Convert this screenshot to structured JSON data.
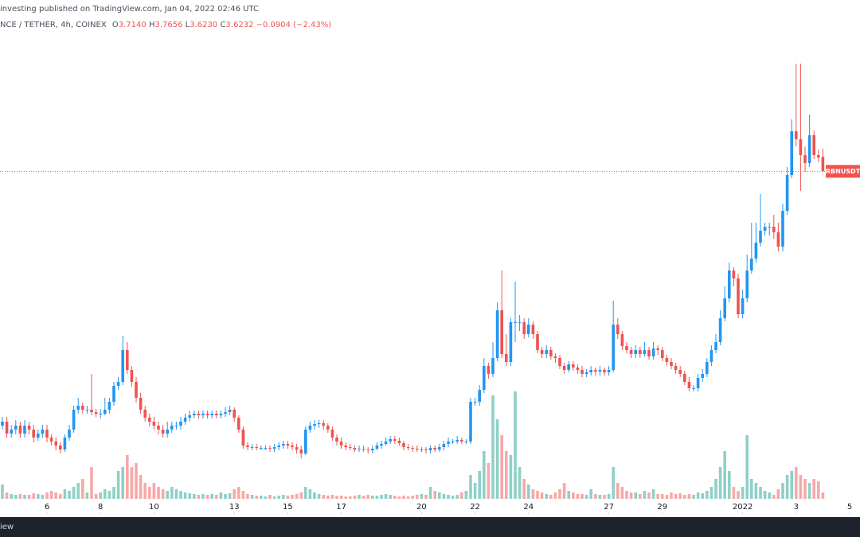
{
  "header": {
    "published": "investing published on TradingView.com, Jan 04, 2022 02:46 UTC",
    "symbol": "NCE / TETHER, 4h, COINEX",
    "open_label": "O",
    "open": "3.7140",
    "high_label": "H",
    "high": "3.7656",
    "low_label": "L",
    "low": "3.6230",
    "close_label": "C",
    "close": "3.6232",
    "change": "−0.0904 (−2.43%)"
  },
  "footer": {
    "brand": "iew"
  },
  "chart_data": {
    "type": "candlestick",
    "open": [
      2.025,
      2.05,
      1.975,
      2.0,
      2.025,
      1.975,
      2.025,
      2.0,
      1.95,
      1.975,
      2.0,
      1.95,
      1.925,
      1.9,
      1.875,
      1.95,
      2.0,
      2.125,
      2.15,
      2.125,
      2.125,
      2.11,
      2.1,
      2.1,
      2.125,
      2.175,
      2.275,
      2.3,
      2.5,
      2.375,
      2.3,
      2.2,
      2.125,
      2.075,
      2.05,
      2.025,
      2.0,
      1.975,
      2.0,
      2.025,
      2.025,
      2.05,
      2.075,
      2.09,
      2.1,
      2.09,
      2.1,
      2.09,
      2.1,
      2.09,
      2.1,
      2.11,
      2.125,
      2.075,
      2.0,
      1.9,
      1.89,
      1.89,
      1.885,
      1.885,
      1.885,
      1.88,
      1.89,
      1.9,
      1.91,
      1.9,
      1.89,
      1.875,
      1.85,
      2.0,
      2.025,
      2.035,
      2.04,
      2.025,
      2.0,
      1.95,
      1.925,
      1.9,
      1.89,
      1.885,
      1.875,
      1.88,
      1.875,
      1.87,
      1.88,
      1.9,
      1.91,
      1.925,
      1.94,
      1.93,
      1.915,
      1.89,
      1.885,
      1.88,
      1.875,
      1.875,
      1.87,
      1.885,
      1.875,
      1.89,
      1.91,
      1.925,
      1.925,
      1.935,
      1.925,
      1.925,
      2.175,
      2.175,
      2.25,
      2.4,
      2.35,
      2.45,
      2.75,
      2.475,
      2.425,
      2.675,
      2.675,
      2.675,
      2.6,
      2.66,
      2.6,
      2.5,
      2.475,
      2.5,
      2.46,
      2.45,
      2.4,
      2.375,
      2.41,
      2.39,
      2.375,
      2.35,
      2.36,
      2.375,
      2.365,
      2.375,
      2.36,
      2.375,
      2.66,
      2.6,
      2.525,
      2.5,
      2.475,
      2.5,
      2.475,
      2.5,
      2.46,
      2.51,
      2.5,
      2.45,
      2.425,
      2.4,
      2.375,
      2.35,
      2.3,
      2.26,
      2.26,
      2.325,
      2.35,
      2.425,
      2.5,
      2.55,
      2.7,
      2.825,
      3.0,
      2.95,
      2.725,
      2.825,
      3.0,
      3.075,
      3.175,
      3.25,
      3.275,
      3.275,
      3.24,
      3.15,
      3.375,
      3.6,
      3.875,
      3.825,
      3.725,
      3.675,
      3.85,
      3.725,
      3.714
    ],
    "high": [
      2.08,
      2.08,
      2.03,
      2.06,
      2.05,
      2.06,
      2.05,
      2.03,
      2.0,
      2.03,
      2.03,
      1.97,
      1.95,
      1.92,
      1.97,
      2.03,
      2.15,
      2.2,
      2.17,
      2.15,
      2.35,
      2.13,
      2.13,
      2.2,
      2.2,
      2.3,
      2.33,
      2.59,
      2.55,
      2.4,
      2.33,
      2.23,
      2.15,
      2.1,
      2.08,
      2.05,
      2.03,
      2.05,
      2.05,
      2.05,
      2.08,
      2.1,
      2.12,
      2.12,
      2.12,
      2.12,
      2.12,
      2.12,
      2.12,
      2.12,
      2.14,
      2.15,
      2.14,
      2.09,
      2.02,
      1.92,
      1.91,
      1.91,
      1.9,
      1.9,
      1.9,
      1.91,
      1.92,
      1.93,
      1.93,
      1.92,
      1.91,
      1.9,
      2.02,
      2.05,
      2.06,
      2.06,
      2.06,
      2.04,
      2.02,
      1.97,
      1.95,
      1.92,
      1.91,
      1.9,
      1.9,
      1.9,
      1.89,
      1.9,
      1.92,
      1.93,
      1.95,
      1.96,
      1.96,
      1.95,
      1.93,
      1.91,
      1.9,
      1.9,
      1.89,
      1.89,
      1.9,
      1.9,
      1.91,
      1.93,
      1.95,
      1.94,
      1.96,
      1.95,
      1.94,
      2.2,
      2.2,
      2.28,
      2.45,
      2.42,
      2.55,
      2.8,
      3.0,
      2.6,
      2.7,
      2.93,
      2.72,
      2.7,
      2.7,
      2.68,
      2.62,
      2.52,
      2.53,
      2.52,
      2.48,
      2.47,
      2.42,
      2.43,
      2.43,
      2.41,
      2.4,
      2.38,
      2.4,
      2.39,
      2.4,
      2.39,
      2.4,
      2.81,
      2.7,
      2.62,
      2.55,
      2.52,
      2.53,
      2.52,
      2.55,
      2.52,
      2.55,
      2.53,
      2.52,
      2.47,
      2.45,
      2.42,
      2.4,
      2.37,
      2.33,
      2.28,
      2.35,
      2.38,
      2.45,
      2.53,
      2.6,
      2.75,
      2.9,
      3.05,
      3.02,
      2.98,
      2.88,
      3.1,
      3.3,
      3.3,
      3.48,
      3.3,
      3.3,
      3.35,
      3.3,
      3.42,
      3.65,
      3.95,
      4.3,
      4.3,
      3.78,
      3.98,
      3.88,
      3.76,
      3.7656
    ],
    "low": [
      2.0,
      1.95,
      1.95,
      1.97,
      1.95,
      1.95,
      1.97,
      1.92,
      1.93,
      1.95,
      1.92,
      1.9,
      1.87,
      1.85,
      1.86,
      1.93,
      1.98,
      2.1,
      2.1,
      2.1,
      2.09,
      2.08,
      2.07,
      2.09,
      2.1,
      2.15,
      2.25,
      2.28,
      2.35,
      2.27,
      2.17,
      2.1,
      2.05,
      2.02,
      2.0,
      1.97,
      1.95,
      1.95,
      1.98,
      2.0,
      2.0,
      2.03,
      2.05,
      2.07,
      2.07,
      2.07,
      2.07,
      2.07,
      2.07,
      2.07,
      2.08,
      2.09,
      2.05,
      1.98,
      1.88,
      1.87,
      1.87,
      1.87,
      1.87,
      1.87,
      1.86,
      1.86,
      1.87,
      1.88,
      1.88,
      1.87,
      1.85,
      1.82,
      1.84,
      1.98,
      2.0,
      2.01,
      2.0,
      1.98,
      1.93,
      1.9,
      1.88,
      1.87,
      1.87,
      1.86,
      1.86,
      1.86,
      1.85,
      1.85,
      1.87,
      1.88,
      1.9,
      1.91,
      1.91,
      1.9,
      1.87,
      1.87,
      1.86,
      1.86,
      1.86,
      1.85,
      1.85,
      1.86,
      1.86,
      1.87,
      1.89,
      1.91,
      1.91,
      1.91,
      1.91,
      1.91,
      2.15,
      2.15,
      2.23,
      2.32,
      2.33,
      2.43,
      2.45,
      2.4,
      2.4,
      2.55,
      2.62,
      2.57,
      2.58,
      2.57,
      2.48,
      2.45,
      2.45,
      2.44,
      2.42,
      2.38,
      2.35,
      2.36,
      2.37,
      2.35,
      2.33,
      2.33,
      2.34,
      2.34,
      2.34,
      2.34,
      2.34,
      2.36,
      2.57,
      2.5,
      2.48,
      2.45,
      2.45,
      2.45,
      2.46,
      2.44,
      2.44,
      2.47,
      2.43,
      2.4,
      2.38,
      2.35,
      2.33,
      2.28,
      2.24,
      2.24,
      2.24,
      2.3,
      2.33,
      2.4,
      2.48,
      2.53,
      2.68,
      2.8,
      2.9,
      2.7,
      2.7,
      2.8,
      2.98,
      3.05,
      3.15,
      3.22,
      3.22,
      3.2,
      3.12,
      3.12,
      3.35,
      3.58,
      3.78,
      3.5,
      3.62,
      3.65,
      3.7,
      3.68,
      3.623
    ],
    "close": [
      2.05,
      1.975,
      2.0,
      2.025,
      1.975,
      2.025,
      2.0,
      1.95,
      1.975,
      2.0,
      1.95,
      1.925,
      1.9,
      1.875,
      1.95,
      2.0,
      2.125,
      2.15,
      2.125,
      2.125,
      2.11,
      2.1,
      2.1,
      2.125,
      2.175,
      2.275,
      2.3,
      2.5,
      2.375,
      2.3,
      2.2,
      2.125,
      2.075,
      2.05,
      2.025,
      2.0,
      1.975,
      2.0,
      2.025,
      2.025,
      2.05,
      2.075,
      2.09,
      2.1,
      2.09,
      2.1,
      2.09,
      2.1,
      2.09,
      2.1,
      2.11,
      2.125,
      2.075,
      2.0,
      1.9,
      1.89,
      1.89,
      1.885,
      1.885,
      1.885,
      1.88,
      1.89,
      1.9,
      1.91,
      1.9,
      1.89,
      1.875,
      1.85,
      2.0,
      2.025,
      2.035,
      2.04,
      2.025,
      2.0,
      1.95,
      1.925,
      1.9,
      1.89,
      1.885,
      1.875,
      1.88,
      1.875,
      1.87,
      1.88,
      1.9,
      1.91,
      1.925,
      1.94,
      1.93,
      1.915,
      1.89,
      1.885,
      1.88,
      1.875,
      1.875,
      1.87,
      1.885,
      1.875,
      1.89,
      1.91,
      1.925,
      1.925,
      1.935,
      1.925,
      1.925,
      2.175,
      2.175,
      2.25,
      2.4,
      2.35,
      2.45,
      2.75,
      2.475,
      2.425,
      2.675,
      2.675,
      2.675,
      2.6,
      2.66,
      2.6,
      2.5,
      2.475,
      2.5,
      2.46,
      2.45,
      2.4,
      2.375,
      2.41,
      2.39,
      2.375,
      2.35,
      2.36,
      2.375,
      2.365,
      2.375,
      2.36,
      2.375,
      2.66,
      2.6,
      2.525,
      2.5,
      2.475,
      2.5,
      2.475,
      2.5,
      2.46,
      2.51,
      2.5,
      2.45,
      2.425,
      2.4,
      2.375,
      2.35,
      2.3,
      2.26,
      2.26,
      2.325,
      2.35,
      2.425,
      2.5,
      2.55,
      2.7,
      2.825,
      3.0,
      2.95,
      2.725,
      2.825,
      3.0,
      3.075,
      3.175,
      3.25,
      3.275,
      3.275,
      3.24,
      3.15,
      3.375,
      3.6,
      3.875,
      3.825,
      3.725,
      3.675,
      3.85,
      3.725,
      3.71,
      3.6232
    ],
    "volume": [
      18,
      8,
      6,
      5,
      6,
      5,
      5,
      7,
      6,
      5,
      8,
      10,
      8,
      6,
      12,
      10,
      15,
      20,
      25,
      8,
      40,
      6,
      8,
      12,
      10,
      15,
      35,
      40,
      55,
      40,
      45,
      30,
      20,
      15,
      20,
      15,
      12,
      10,
      15,
      12,
      10,
      8,
      7,
      6,
      5,
      6,
      5,
      6,
      5,
      8,
      6,
      7,
      12,
      15,
      10,
      6,
      5,
      4,
      4,
      3,
      5,
      3,
      4,
      5,
      4,
      5,
      6,
      8,
      15,
      12,
      8,
      6,
      5,
      4,
      5,
      4,
      4,
      3,
      3,
      4,
      5,
      4,
      5,
      4,
      4,
      5,
      6,
      5,
      4,
      3,
      4,
      3,
      4,
      5,
      6,
      5,
      15,
      10,
      8,
      6,
      5,
      4,
      5,
      8,
      10,
      30,
      20,
      35,
      60,
      45,
      130,
      100,
      80,
      60,
      55,
      135,
      40,
      25,
      18,
      12,
      10,
      8,
      6,
      5,
      8,
      12,
      20,
      10,
      8,
      6,
      6,
      5,
      12,
      6,
      5,
      5,
      6,
      40,
      20,
      15,
      10,
      8,
      8,
      6,
      10,
      8,
      12,
      6,
      6,
      5,
      8,
      6,
      7,
      5,
      6,
      5,
      8,
      7,
      10,
      15,
      25,
      40,
      60,
      35,
      15,
      10,
      15,
      80,
      25,
      20,
      15,
      10,
      8,
      5,
      12,
      20,
      30,
      35,
      40,
      30,
      25,
      20,
      25,
      22,
      8
    ],
    "ylim": [
      1.465,
      4.6
    ],
    "xticks": [
      {
        "value": 10,
        "label": "6"
      },
      {
        "value": 22,
        "label": "8"
      },
      {
        "value": 34,
        "label": "10"
      },
      {
        "value": 52,
        "label": "13"
      },
      {
        "value": 64,
        "label": "15"
      },
      {
        "value": 76,
        "label": "17"
      },
      {
        "value": 94,
        "label": "20"
      },
      {
        "value": 106,
        "label": "22"
      },
      {
        "value": 118,
        "label": "24"
      },
      {
        "value": 136,
        "label": "27"
      },
      {
        "value": 148,
        "label": "29"
      },
      {
        "value": 166,
        "label": "2022"
      },
      {
        "value": 178,
        "label": "3"
      },
      {
        "value": 190,
        "label": "5"
      }
    ],
    "last_price_label": "RBNUSDT",
    "up_color": "#2196f3",
    "down_color": "#ef5350",
    "volume_up_color": "#8fd0c8",
    "volume_down_color": "#f7a9a7"
  }
}
